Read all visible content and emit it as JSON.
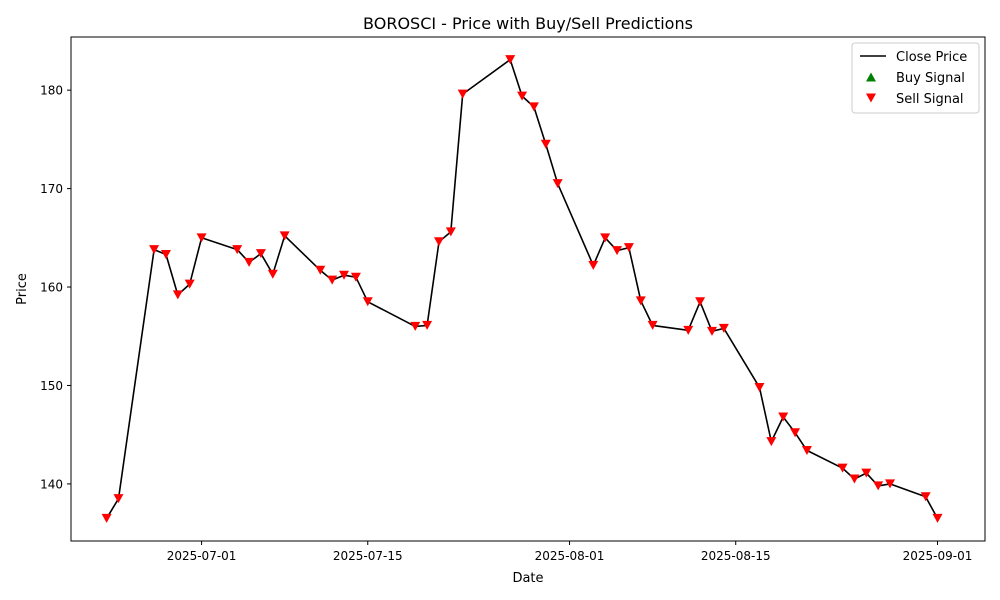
{
  "chart_data": {
    "type": "line",
    "title": "BOROSCI - Price with Buy/Sell Predictions",
    "xlabel": "Date",
    "ylabel": "Price",
    "grid": false,
    "legend_position": "top-right",
    "xlim": [
      "2025-06-20",
      "2025-09-05"
    ],
    "ylim": [
      134.2,
      185.4
    ],
    "x_ticks": [
      "2025-07-01",
      "2025-07-15",
      "2025-08-01",
      "2025-08-15",
      "2025-09-01"
    ],
    "y_ticks": [
      140,
      150,
      160,
      170,
      180
    ],
    "colors": {
      "line": "#000000",
      "buy": "#008000",
      "sell": "#ff0000"
    },
    "legend": [
      "Close Price",
      "Buy Signal",
      "Sell Signal"
    ],
    "series": [
      {
        "name": "Close Price",
        "kind": "line",
        "x": [
          "2025-06-23",
          "2025-06-24",
          "2025-06-27",
          "2025-06-28",
          "2025-06-29",
          "2025-06-30",
          "2025-07-01",
          "2025-07-04",
          "2025-07-05",
          "2025-07-06",
          "2025-07-07",
          "2025-07-08",
          "2025-07-11",
          "2025-07-12",
          "2025-07-13",
          "2025-07-14",
          "2025-07-15",
          "2025-07-19",
          "2025-07-20",
          "2025-07-21",
          "2025-07-22",
          "2025-07-23",
          "2025-07-27",
          "2025-07-28",
          "2025-07-29",
          "2025-07-30",
          "2025-07-31",
          "2025-08-03",
          "2025-08-04",
          "2025-08-05",
          "2025-08-06",
          "2025-08-07",
          "2025-08-08",
          "2025-08-11",
          "2025-08-12",
          "2025-08-13",
          "2025-08-14",
          "2025-08-17",
          "2025-08-18",
          "2025-08-19",
          "2025-08-20",
          "2025-08-21",
          "2025-08-24",
          "2025-08-25",
          "2025-08-26",
          "2025-08-27",
          "2025-08-28",
          "2025-08-31",
          "2025-09-01"
        ],
        "y": [
          136.5,
          138.5,
          163.8,
          163.3,
          159.2,
          160.3,
          165.0,
          163.8,
          162.5,
          163.4,
          161.3,
          165.2,
          161.7,
          160.7,
          161.2,
          161.0,
          158.5,
          156.0,
          156.1,
          164.6,
          165.6,
          179.6,
          183.1,
          179.4,
          178.3,
          174.5,
          170.5,
          162.2,
          165.0,
          163.7,
          164.0,
          158.6,
          156.1,
          155.6,
          158.5,
          155.5,
          155.8,
          149.8,
          144.3,
          146.8,
          145.2,
          143.4,
          141.6,
          140.5,
          141.1,
          139.8,
          140.0,
          138.7,
          136.5
        ]
      },
      {
        "name": "Buy Signal",
        "kind": "marker-up",
        "x": [],
        "y": []
      },
      {
        "name": "Sell Signal",
        "kind": "marker-down",
        "x": [
          "2025-06-23",
          "2025-06-24",
          "2025-06-27",
          "2025-06-28",
          "2025-06-29",
          "2025-06-30",
          "2025-07-01",
          "2025-07-04",
          "2025-07-05",
          "2025-07-06",
          "2025-07-07",
          "2025-07-08",
          "2025-07-11",
          "2025-07-12",
          "2025-07-13",
          "2025-07-14",
          "2025-07-15",
          "2025-07-19",
          "2025-07-20",
          "2025-07-21",
          "2025-07-22",
          "2025-07-23",
          "2025-07-27",
          "2025-07-28",
          "2025-07-29",
          "2025-07-30",
          "2025-07-31",
          "2025-08-03",
          "2025-08-04",
          "2025-08-05",
          "2025-08-06",
          "2025-08-07",
          "2025-08-08",
          "2025-08-11",
          "2025-08-12",
          "2025-08-13",
          "2025-08-14",
          "2025-08-17",
          "2025-08-18",
          "2025-08-19",
          "2025-08-20",
          "2025-08-21",
          "2025-08-24",
          "2025-08-25",
          "2025-08-26",
          "2025-08-27",
          "2025-08-28",
          "2025-08-31",
          "2025-09-01"
        ],
        "y": [
          136.5,
          138.5,
          163.8,
          163.3,
          159.2,
          160.3,
          165.0,
          163.8,
          162.5,
          163.4,
          161.3,
          165.2,
          161.7,
          160.7,
          161.2,
          161.0,
          158.5,
          156.0,
          156.1,
          164.6,
          165.6,
          179.6,
          183.1,
          179.4,
          178.3,
          174.5,
          170.5,
          162.2,
          165.0,
          163.7,
          164.0,
          158.6,
          156.1,
          155.6,
          158.5,
          155.5,
          155.8,
          149.8,
          144.3,
          146.8,
          145.2,
          143.4,
          141.6,
          140.5,
          141.1,
          139.8,
          140.0,
          138.7,
          136.5
        ]
      }
    ]
  }
}
